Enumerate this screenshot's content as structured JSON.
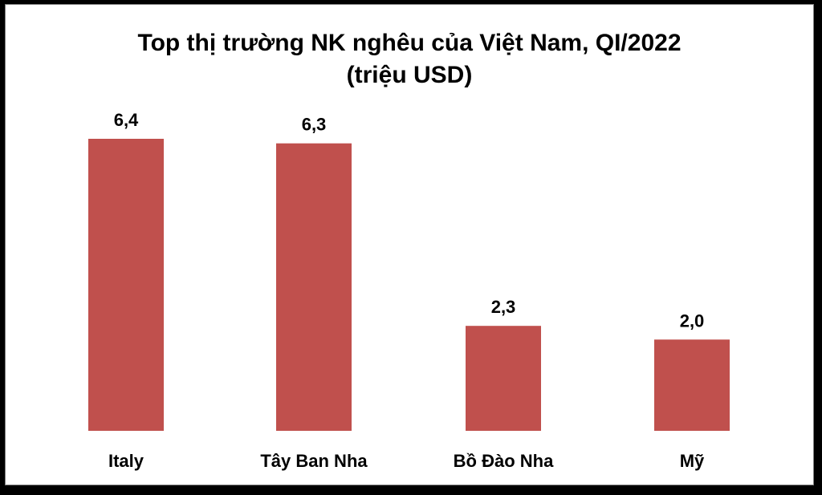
{
  "chart_data": {
    "type": "bar",
    "title": "Top thị trường NK nghêu của Việt Nam, QI/2022",
    "subtitle": "(triệu USD)",
    "categories": [
      "Italy",
      "Tây Ban Nha",
      "Bồ Đào Nha",
      "Mỹ"
    ],
    "values": [
      6.4,
      6.3,
      2.3,
      2.0
    ],
    "value_labels": [
      "6,4",
      "6,3",
      "2,3",
      "2,0"
    ],
    "bar_color": "#c0504d",
    "ylim": [
      0,
      6.4
    ],
    "grid": false,
    "legend": "none"
  }
}
